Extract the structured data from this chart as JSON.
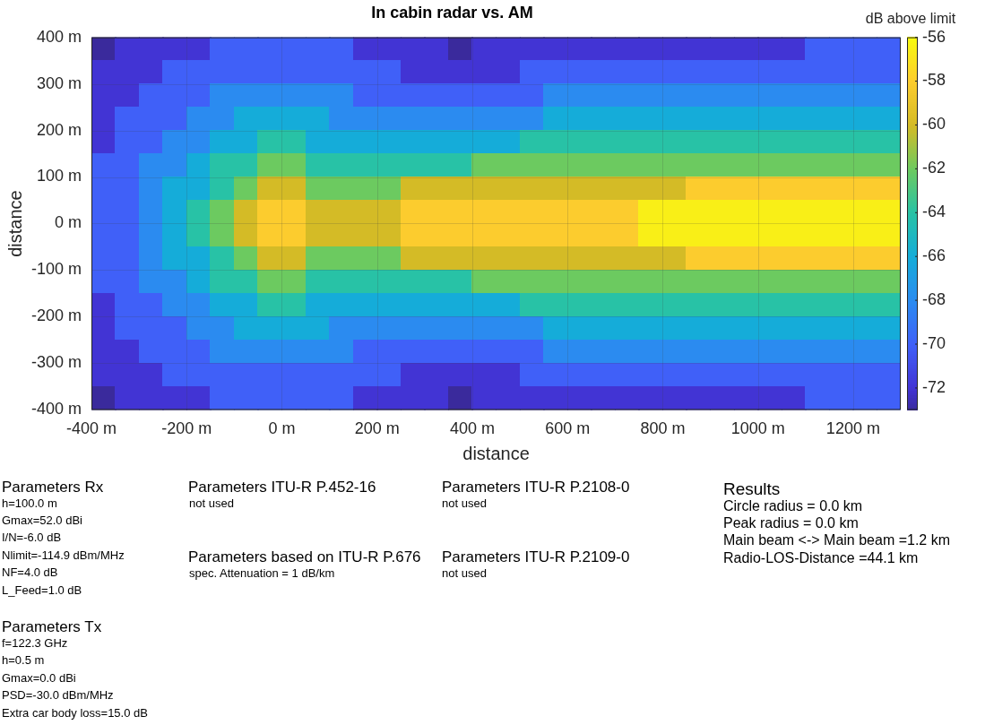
{
  "chart_data": {
    "type": "heatmap",
    "title": "In cabin radar vs. AM",
    "xlabel": "distance",
    "ylabel": "distance",
    "clabel": "dB above limit",
    "x": [
      -375,
      -325,
      -275,
      -225,
      -175,
      -125,
      -75,
      -25,
      25,
      75,
      125,
      175,
      225,
      275,
      325,
      375,
      425,
      475,
      525,
      575,
      625,
      675,
      725,
      775,
      825,
      875,
      925,
      975,
      1025,
      1075,
      1125,
      1175,
      1225,
      1275
    ],
    "y": [
      375,
      325,
      275,
      225,
      175,
      125,
      75,
      25,
      -25,
      -75,
      -125,
      -175,
      -225,
      -275,
      -325,
      -375
    ],
    "cells": [
      [
        -73,
        -72,
        -72,
        -72,
        -72,
        -70,
        -70,
        -70,
        -70,
        -70,
        -70,
        -72,
        -72,
        -72,
        -72,
        -73,
        -72,
        -72,
        -72,
        -72,
        -72,
        -72,
        -72,
        -72,
        -72,
        -72,
        -72,
        -72,
        -72,
        -72,
        -70,
        -70,
        -70,
        -70
      ],
      [
        -72,
        -72,
        -72,
        -70,
        -70,
        -70,
        -70,
        -70,
        -70,
        -70,
        -70,
        -70,
        -70,
        -72,
        -72,
        -72,
        -72,
        -72,
        -70,
        -70,
        -70,
        -70,
        -70,
        -70,
        -70,
        -70,
        -70,
        -70,
        -70,
        -70,
        -70,
        -70,
        -70,
        -70
      ],
      [
        -72,
        -72,
        -70,
        -70,
        -70,
        -68,
        -68,
        -68,
        -68,
        -68,
        -68,
        -70,
        -70,
        -70,
        -70,
        -70,
        -70,
        -70,
        -70,
        -68,
        -68,
        -68,
        -68,
        -68,
        -68,
        -68,
        -68,
        -68,
        -68,
        -68,
        -68,
        -68,
        -68,
        -68
      ],
      [
        -72,
        -70,
        -70,
        -70,
        -68,
        -68,
        -66,
        -66,
        -66,
        -66,
        -68,
        -68,
        -68,
        -68,
        -68,
        -68,
        -68,
        -68,
        -68,
        -66,
        -66,
        -66,
        -66,
        -66,
        -66,
        -66,
        -66,
        -66,
        -66,
        -66,
        -66,
        -66,
        -66,
        -66
      ],
      [
        -72,
        -70,
        -70,
        -68,
        -68,
        -66,
        -66,
        -64,
        -64,
        -66,
        -66,
        -66,
        -66,
        -66,
        -66,
        -66,
        -66,
        -66,
        -64,
        -64,
        -64,
        -64,
        -64,
        -64,
        -64,
        -64,
        -64,
        -64,
        -64,
        -64,
        -64,
        -64,
        -64,
        -64
      ],
      [
        -70,
        -70,
        -68,
        -68,
        -66,
        -64,
        -64,
        -62,
        -62,
        -64,
        -64,
        -64,
        -64,
        -64,
        -64,
        -64,
        -62,
        -62,
        -62,
        -62,
        -62,
        -62,
        -62,
        -62,
        -62,
        -62,
        -62,
        -62,
        -62,
        -62,
        -62,
        -62,
        -62,
        -62
      ],
      [
        -70,
        -70,
        -68,
        -66,
        -66,
        -64,
        -62,
        -60,
        -60,
        -62,
        -62,
        -62,
        -62,
        -60,
        -60,
        -60,
        -60,
        -60,
        -60,
        -60,
        -60,
        -60,
        -60,
        -60,
        -60,
        -58,
        -58,
        -58,
        -58,
        -58,
        -58,
        -58,
        -58,
        -58
      ],
      [
        -70,
        -70,
        -68,
        -66,
        -64,
        -62,
        -60,
        -58,
        -58,
        -60,
        -60,
        -60,
        -60,
        -58,
        -58,
        -58,
        -58,
        -58,
        -58,
        -58,
        -58,
        -58,
        -58,
        -56.5,
        -56.5,
        -56.5,
        -56.5,
        -56.5,
        -56.5,
        -56.5,
        -56.5,
        -56.5,
        -56.5,
        -56.5
      ],
      [
        -70,
        -70,
        -68,
        -66,
        -64,
        -62,
        -60,
        -58,
        -58,
        -60,
        -60,
        -60,
        -60,
        -58,
        -58,
        -58,
        -58,
        -58,
        -58,
        -58,
        -58,
        -58,
        -58,
        -56.5,
        -56.5,
        -56.5,
        -56.5,
        -56.5,
        -56.5,
        -56.5,
        -56.5,
        -56.5,
        -56.5,
        -56.5
      ],
      [
        -70,
        -70,
        -68,
        -66,
        -66,
        -64,
        -62,
        -60,
        -60,
        -62,
        -62,
        -62,
        -62,
        -60,
        -60,
        -60,
        -60,
        -60,
        -60,
        -60,
        -60,
        -60,
        -60,
        -60,
        -60,
        -58,
        -58,
        -58,
        -58,
        -58,
        -58,
        -58,
        -58,
        -58
      ],
      [
        -70,
        -70,
        -68,
        -68,
        -66,
        -64,
        -64,
        -62,
        -62,
        -64,
        -64,
        -64,
        -64,
        -64,
        -64,
        -64,
        -62,
        -62,
        -62,
        -62,
        -62,
        -62,
        -62,
        -62,
        -62,
        -62,
        -62,
        -62,
        -62,
        -62,
        -62,
        -62,
        -62,
        -62
      ],
      [
        -72,
        -70,
        -70,
        -68,
        -68,
        -66,
        -66,
        -64,
        -64,
        -66,
        -66,
        -66,
        -66,
        -66,
        -66,
        -66,
        -66,
        -66,
        -64,
        -64,
        -64,
        -64,
        -64,
        -64,
        -64,
        -64,
        -64,
        -64,
        -64,
        -64,
        -64,
        -64,
        -64,
        -64
      ],
      [
        -72,
        -70,
        -70,
        -70,
        -68,
        -68,
        -66,
        -66,
        -66,
        -66,
        -68,
        -68,
        -68,
        -68,
        -68,
        -68,
        -68,
        -68,
        -68,
        -66,
        -66,
        -66,
        -66,
        -66,
        -66,
        -66,
        -66,
        -66,
        -66,
        -66,
        -66,
        -66,
        -66,
        -66
      ],
      [
        -72,
        -72,
        -70,
        -70,
        -70,
        -68,
        -68,
        -68,
        -68,
        -68,
        -68,
        -70,
        -70,
        -70,
        -70,
        -70,
        -70,
        -70,
        -70,
        -68,
        -68,
        -68,
        -68,
        -68,
        -68,
        -68,
        -68,
        -68,
        -68,
        -68,
        -68,
        -68,
        -68,
        -68
      ],
      [
        -72,
        -72,
        -72,
        -70,
        -70,
        -70,
        -70,
        -70,
        -70,
        -70,
        -70,
        -70,
        -70,
        -72,
        -72,
        -72,
        -72,
        -72,
        -70,
        -70,
        -70,
        -70,
        -70,
        -70,
        -70,
        -70,
        -70,
        -70,
        -70,
        -70,
        -70,
        -70,
        -70,
        -70
      ],
      [
        -73,
        -72,
        -72,
        -72,
        -72,
        -70,
        -70,
        -70,
        -70,
        -70,
        -70,
        -72,
        -72,
        -72,
        -72,
        -73,
        -72,
        -72,
        -72,
        -72,
        -72,
        -72,
        -72,
        -72,
        -72,
        -72,
        -72,
        -72,
        -72,
        -72,
        -70,
        -70,
        -70,
        -70
      ]
    ],
    "xlim": [
      -400,
      1300
    ],
    "ylim": [
      -400,
      400
    ],
    "xticks": [
      {
        "value": -400,
        "label": "-400 m"
      },
      {
        "value": -200,
        "label": "-200 m"
      },
      {
        "value": 0,
        "label": "0 m"
      },
      {
        "value": 200,
        "label": "200 m"
      },
      {
        "value": 400,
        "label": "400 m"
      },
      {
        "value": 600,
        "label": "600 m"
      },
      {
        "value": 800,
        "label": "800 m"
      },
      {
        "value": 1000,
        "label": "1000 m"
      },
      {
        "value": 1200,
        "label": "1200 m"
      }
    ],
    "yticks": [
      {
        "value": -400,
        "label": "-400 m"
      },
      {
        "value": -300,
        "label": "-300 m"
      },
      {
        "value": -200,
        "label": "-200 m"
      },
      {
        "value": -100,
        "label": "-100 m"
      },
      {
        "value": 0,
        "label": "0 m"
      },
      {
        "value": 100,
        "label": "100 m"
      },
      {
        "value": 200,
        "label": "200 m"
      },
      {
        "value": 300,
        "label": "300 m"
      },
      {
        "value": 400,
        "label": "400 m"
      }
    ],
    "clim": [
      -73,
      -56
    ],
    "cticks": [
      -72,
      -70,
      -68,
      -66,
      -64,
      -62,
      -60,
      -58,
      -56
    ],
    "grid": true,
    "annotations": [
      "Parameters Rx",
      "h=100.0 m",
      "Gmax=52.0 dBi",
      "I/N=-6.0 dB",
      "Nlimit=-114.9 dBm/MHz",
      "NF=4.0 dB",
      "L_Feed=1.0 dB",
      "Parameters Tx",
      "f=122.3 GHz",
      "h=0.5 m",
      "Gmax=0.0 dBi",
      "PSD=-30.0 dBm/MHz",
      "Extra car body loss=15.0 dB",
      "Parameters ITU-R P.452-16",
      "not used",
      "Parameters based on ITU-R P.676",
      "spec. Attenuation = 1 dB/km",
      "Parameters ITU-R P.2108-0",
      "not used",
      "Parameters ITU-R P.2109-0",
      "not used",
      "Results",
      "Circle radius = 0.0 km",
      "Peak radius = 0.0 km",
      "Main beam <-> Main beam =1.2 km",
      "Radio-LOS-Distance =44.1 km"
    ]
  }
}
